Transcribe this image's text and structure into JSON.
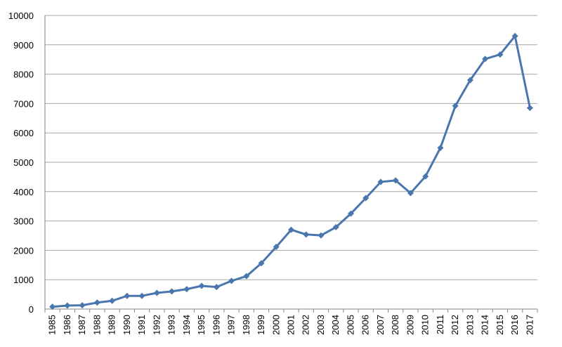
{
  "chart_data": {
    "type": "line",
    "categories": [
      "1985",
      "1986",
      "1987",
      "1988",
      "1989",
      "1990",
      "1991",
      "1992",
      "1993",
      "1994",
      "1995",
      "1996",
      "1997",
      "1998",
      "1999",
      "2000",
      "2001",
      "2002",
      "2003",
      "2004",
      "2005",
      "2006",
      "2007",
      "2008",
      "2009",
      "2010",
      "2011",
      "2012",
      "2013",
      "2014",
      "2015",
      "2016",
      "2017"
    ],
    "series": [
      {
        "values": [
          80,
          120,
          130,
          220,
          280,
          450,
          450,
          550,
          600,
          680,
          790,
          750,
          960,
          1120,
          1560,
          2120,
          2700,
          2540,
          2510,
          2790,
          3250,
          3780,
          4330,
          4380,
          3950,
          4520,
          5490,
          6920,
          7800,
          8520,
          8670,
          9300,
          6850
        ],
        "color": "#4a76ae"
      }
    ],
    "ylim": [
      0,
      10000
    ],
    "yticks": [
      0,
      1000,
      2000,
      3000,
      4000,
      5000,
      6000,
      7000,
      8000,
      9000,
      10000
    ],
    "ytick_labels": [
      "0",
      "1000",
      "2000",
      "3000",
      "4000",
      "5000",
      "6000",
      "7000",
      "8000",
      "9000",
      "10000"
    ],
    "marker": "diamond",
    "grid": true,
    "legend": "none"
  }
}
